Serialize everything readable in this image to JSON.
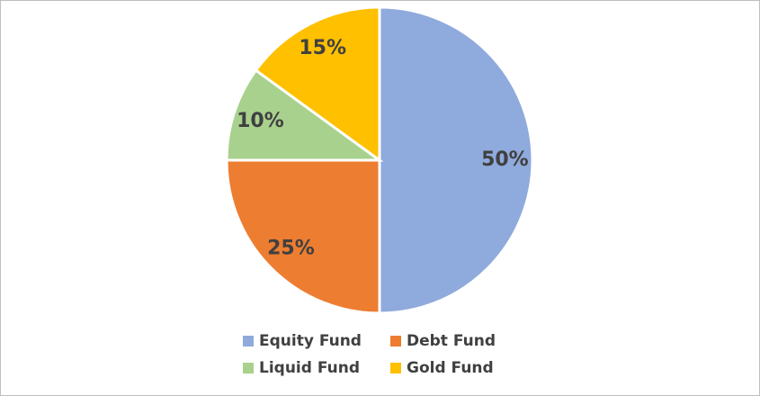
{
  "chart_data": {
    "type": "pie",
    "categories": [
      "Equity Fund",
      "Debt Fund",
      "Liquid Fund",
      "Gold Fund"
    ],
    "values": [
      50,
      25,
      10,
      15
    ],
    "value_labels": [
      "50%",
      "25%",
      "10%",
      "15%"
    ],
    "colors": [
      "#8faadc",
      "#ed7d31",
      "#a9d18e",
      "#ffc000"
    ],
    "legend": "bottom"
  }
}
